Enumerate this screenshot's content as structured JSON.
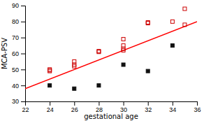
{
  "chart_data": {
    "type": "scatter",
    "xlabel": "gestational age",
    "ylabel": "MCA-PSV",
    "xlim": [
      22,
      36
    ],
    "ylim": [
      30,
      90
    ],
    "xticks": [
      22,
      24,
      26,
      28,
      30,
      32,
      34,
      36
    ],
    "yticks": [
      30,
      40,
      50,
      60,
      70,
      80,
      90
    ],
    "series": [
      {
        "type": "line",
        "color": "#ff0000",
        "line_style": "solid",
        "x": [
          22,
          36
        ],
        "values": [
          38,
          80
        ]
      },
      {
        "type": "scatter",
        "color": "#cc0000",
        "marker": "square-open",
        "x": [
          24,
          24,
          24,
          26,
          26,
          26,
          28,
          28,
          30,
          30,
          30,
          30,
          32,
          32,
          34,
          35,
          35
        ],
        "values": [
          49,
          50,
          49.5,
          53,
          52,
          55,
          61,
          61.5,
          62,
          63,
          65,
          69,
          79,
          79.5,
          80,
          88,
          78
        ]
      },
      {
        "type": "scatter",
        "color": "#111111",
        "marker": "square",
        "x": [
          24,
          26,
          28,
          30,
          32,
          34
        ],
        "values": [
          40,
          38,
          40,
          53,
          49,
          65
        ]
      }
    ]
  }
}
